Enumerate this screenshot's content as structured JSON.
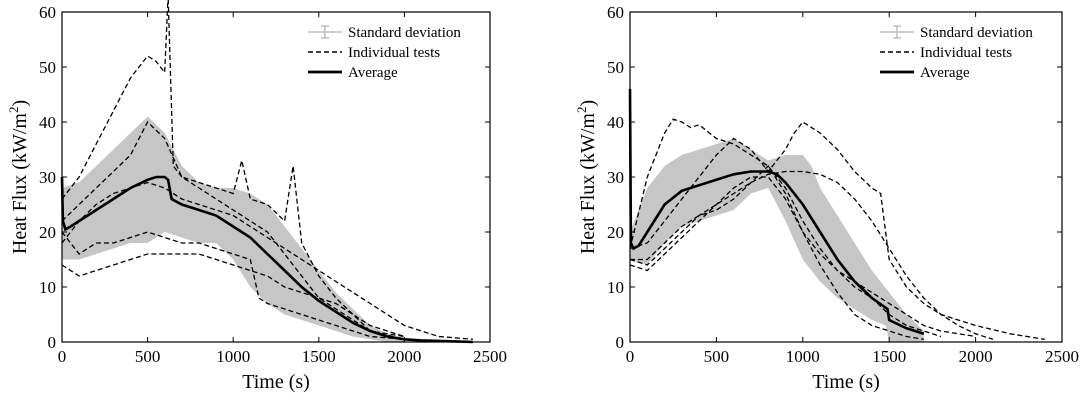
{
  "chart_data": [
    {
      "type": "line",
      "xlabel": "Time (s)",
      "ylabel_main": "Heat Flux (kW/m",
      "ylabel_sup": "2",
      "ylabel_close": ")",
      "xlim": [
        0,
        2500
      ],
      "ylim": [
        0,
        60
      ],
      "xticks": [
        0,
        500,
        1000,
        1500,
        2000,
        2500
      ],
      "yticks": [
        0,
        10,
        20,
        30,
        40,
        50,
        60
      ],
      "legend_position": "top-right",
      "legend": [
        "Standard deviation",
        "Individual tests",
        "Average"
      ],
      "average": {
        "x": [
          0,
          5,
          20,
          50,
          100,
          200,
          300,
          400,
          500,
          550,
          600,
          620,
          640,
          700,
          800,
          900,
          1000,
          1100,
          1200,
          1300,
          1400,
          1500,
          1600,
          1700,
          1800,
          1900,
          2000,
          2100,
          2200,
          2300,
          2400
        ],
        "y": [
          30,
          22,
          20.5,
          21,
          22,
          24,
          26,
          28,
          29.5,
          30,
          30,
          29.5,
          26,
          25,
          24,
          23,
          21,
          19,
          16,
          13,
          10,
          7.5,
          5.5,
          3.5,
          2,
          1,
          0.5,
          0.3,
          0.2,
          0.1,
          0
        ]
      },
      "std_upper": {
        "x": [
          0,
          100,
          200,
          300,
          400,
          500,
          600,
          700,
          800,
          900,
          1000,
          1100,
          1200,
          1300,
          1400,
          1500,
          1600,
          1700,
          1800,
          1900,
          2000
        ],
        "y": [
          28,
          29,
          32,
          35,
          38,
          41,
          38,
          32,
          29,
          28,
          28,
          27,
          25,
          21,
          17,
          13,
          9,
          6,
          3,
          1.5,
          0.5
        ]
      },
      "std_lower": {
        "x": [
          0,
          100,
          200,
          300,
          400,
          500,
          600,
          700,
          800,
          900,
          1000,
          1100,
          1200,
          1300,
          1400,
          1500,
          1600,
          1700,
          1800,
          1900,
          2000
        ],
        "y": [
          15,
          15,
          16,
          17,
          18,
          18,
          20,
          19,
          18,
          18,
          15,
          10,
          7,
          5,
          4,
          3,
          2,
          1,
          0.5,
          0,
          0
        ]
      },
      "individual_tests": [
        {
          "x": [
            0,
            100,
            200,
            300,
            350,
            400,
            450,
            500,
            550,
            600,
            620,
            650,
            700,
            800,
            900,
            1000,
            1100,
            1200,
            1300,
            1400,
            1500,
            1600,
            1700,
            1800,
            2000
          ],
          "y": [
            26,
            30,
            36,
            42,
            45,
            48,
            50,
            52,
            51,
            49,
            63,
            32,
            30,
            28,
            26,
            24,
            22,
            20,
            16,
            12,
            8,
            6,
            4,
            2,
            1
          ]
        },
        {
          "x": [
            0,
            100,
            200,
            300,
            400,
            500,
            600,
            700,
            800,
            900,
            1000,
            1050,
            1100,
            1200,
            1300,
            1350,
            1400,
            1500,
            1600,
            1700,
            1800,
            2000
          ],
          "y": [
            22,
            25,
            28,
            31,
            34,
            40,
            37,
            30,
            29,
            28,
            27,
            33,
            26,
            25,
            22,
            32,
            18,
            12,
            8,
            5,
            2,
            0.5
          ]
        },
        {
          "x": [
            0,
            100,
            200,
            300,
            400,
            500,
            600,
            700,
            800,
            900,
            1000,
            1100,
            1150,
            1200,
            1300,
            1400,
            1500,
            1600,
            1700,
            1800,
            2000
          ],
          "y": [
            20,
            16,
            18,
            18,
            19,
            20,
            19,
            18,
            18,
            17,
            16,
            15,
            8,
            7,
            6,
            5,
            4,
            3,
            2,
            1,
            0.5
          ]
        },
        {
          "x": [
            0,
            100,
            200,
            300,
            400,
            500,
            600,
            700,
            800,
            900,
            1000,
            1100,
            1200,
            1300,
            1400,
            1500,
            1600,
            1700,
            1800,
            1900,
            2000
          ],
          "y": [
            14,
            12,
            13,
            14,
            15,
            16,
            16,
            16,
            16,
            15,
            14,
            13,
            12,
            10,
            9,
            8,
            7,
            5,
            3,
            2,
            1
          ]
        },
        {
          "x": [
            0,
            100,
            200,
            300,
            400,
            500,
            600,
            700,
            800,
            900,
            1000,
            1100,
            1200,
            1300,
            1400,
            1500,
            1600,
            1700,
            1800,
            1900,
            2000,
            2100,
            2200,
            2400
          ],
          "y": [
            18,
            22,
            25,
            27,
            28,
            29,
            28,
            26,
            25,
            24,
            23,
            21,
            19,
            17,
            15,
            13,
            11,
            9,
            7,
            5,
            3,
            2,
            1,
            0.5
          ]
        }
      ]
    },
    {
      "type": "line",
      "xlabel": "Time (s)",
      "ylabel_main": "Heat Flux (kW/m",
      "ylabel_sup": "2",
      "ylabel_close": ")",
      "xlim": [
        0,
        2500
      ],
      "ylim": [
        0,
        60
      ],
      "xticks": [
        0,
        500,
        1000,
        1500,
        2000,
        2500
      ],
      "yticks": [
        0,
        10,
        20,
        30,
        40,
        50,
        60
      ],
      "legend_position": "top-right",
      "legend": [
        "Standard deviation",
        "Individual tests",
        "Average"
      ],
      "average": {
        "x": [
          0,
          5,
          20,
          50,
          100,
          200,
          300,
          400,
          500,
          600,
          700,
          800,
          850,
          900,
          1000,
          1100,
          1200,
          1300,
          1400,
          1490,
          1500,
          1600,
          1700
        ],
        "y": [
          46,
          18,
          17,
          17.5,
          20,
          25,
          27.5,
          28.5,
          29.5,
          30.5,
          31,
          31,
          30.5,
          29,
          25,
          20,
          15,
          11,
          8,
          6,
          4,
          2.5,
          1.5
        ]
      },
      "std_upper": {
        "x": [
          0,
          100,
          200,
          300,
          400,
          500,
          600,
          700,
          800,
          900,
          1000,
          1050,
          1100,
          1200,
          1300,
          1400,
          1500,
          1600,
          1700
        ],
        "y": [
          20,
          28,
          32,
          34,
          35,
          36,
          37,
          35,
          33,
          34,
          34,
          32,
          28,
          23,
          18,
          13,
          9,
          5,
          2
        ]
      },
      "std_lower": {
        "x": [
          0,
          100,
          200,
          300,
          400,
          500,
          600,
          700,
          800,
          900,
          1000,
          1100,
          1200,
          1300,
          1400,
          1480,
          1500,
          1600,
          1700
        ],
        "y": [
          15,
          14,
          18,
          21,
          22,
          23,
          24,
          27,
          28,
          22,
          15,
          11,
          8,
          6,
          4,
          3,
          0,
          0,
          0
        ]
      },
      "individual_tests": [
        {
          "x": [
            0,
            100,
            200,
            250,
            300,
            350,
            400,
            500,
            600,
            700,
            800,
            900,
            1000,
            1100,
            1200,
            1300,
            1400,
            1500,
            1600,
            1800
          ],
          "y": [
            17,
            30,
            38,
            40.5,
            40,
            39,
            39.5,
            37,
            36,
            34,
            32,
            28,
            22,
            17,
            13,
            10,
            8,
            5,
            3,
            1
          ]
        },
        {
          "x": [
            0,
            100,
            200,
            300,
            400,
            500,
            600,
            700,
            800,
            900,
            950,
            1000,
            1100,
            1200,
            1300,
            1400,
            1450,
            1500,
            1600,
            1700,
            1800,
            2000,
            2200,
            2400
          ],
          "y": [
            17,
            18,
            22,
            26,
            30,
            34,
            37,
            35,
            31,
            35,
            38,
            40,
            38,
            35,
            31,
            28,
            27,
            15,
            10,
            7,
            5,
            3,
            1.5,
            0.5
          ]
        },
        {
          "x": [
            0,
            100,
            200,
            300,
            400,
            500,
            600,
            700,
            800,
            900,
            1000,
            1100,
            1200,
            1300,
            1400,
            1500,
            1600,
            1700
          ],
          "y": [
            15,
            15,
            18,
            21,
            23,
            24,
            26,
            29,
            32,
            27,
            20,
            14,
            9,
            5,
            3,
            2,
            1,
            0.5
          ]
        },
        {
          "x": [
            0,
            100,
            200,
            300,
            400,
            500,
            600,
            700,
            800,
            900,
            1000,
            1100,
            1200,
            1300,
            1400,
            1500,
            1600,
            1700,
            1800,
            1900,
            2000,
            2100
          ],
          "y": [
            15,
            14,
            17,
            20,
            23,
            25,
            27,
            29,
            30.5,
            31,
            31,
            30.5,
            29,
            26,
            22,
            17,
            12,
            8,
            5,
            3,
            1.5,
            0.5
          ]
        },
        {
          "x": [
            0,
            100,
            200,
            300,
            400,
            500,
            600,
            700,
            800,
            900,
            1000,
            1100,
            1200,
            1300,
            1400,
            1500,
            1600,
            1700,
            1800,
            2000
          ],
          "y": [
            14,
            13,
            16,
            19,
            22,
            25,
            28,
            30,
            30,
            26,
            20,
            16,
            13,
            11,
            9,
            7,
            5,
            3,
            2,
            1
          ]
        }
      ]
    }
  ]
}
